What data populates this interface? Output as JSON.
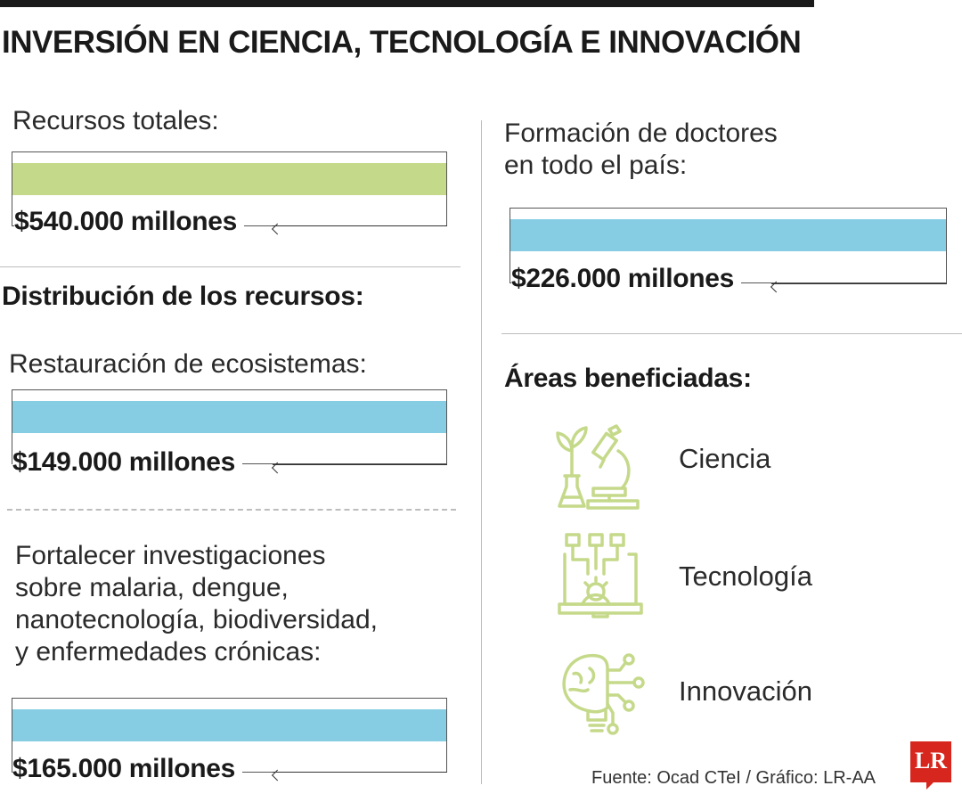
{
  "title": "INVERSIÓN EN CIENCIA, TECNOLOGÍA E INNOVACIÓN",
  "colors": {
    "green": "#c5d98a",
    "blue": "#86cde3",
    "icon_green": "#c5d98a",
    "logo_red": "#d7261e"
  },
  "chart_data": [
    {
      "type": "bar",
      "label": "Recursos totales:",
      "value_label": "$540.000 millones",
      "value": 540000,
      "unit": "millones",
      "color": "#c5d98a"
    },
    {
      "type": "bar",
      "label": "Restauración de ecosistemas:",
      "value_label": "$149.000 millones",
      "value": 149000,
      "unit": "millones",
      "color": "#86cde3"
    },
    {
      "type": "bar",
      "label": "Fortalecer investigaciones sobre malaria, dengue, nanotecnología, biodiversidad, y enfermedades crónicas:",
      "value_label": "$165.000 millones",
      "value": 165000,
      "unit": "millones",
      "color": "#86cde3"
    },
    {
      "type": "bar",
      "label": "Formación de doctores en todo el país:",
      "value_label": "$226.000 millones",
      "value": 226000,
      "unit": "millones",
      "color": "#86cde3"
    }
  ],
  "left": {
    "total_label": "Recursos totales:",
    "total_value": "$540.000 millones",
    "distribution_heading": "Distribución de los recursos:",
    "ecosystems_label": "Restauración de ecosistemas:",
    "ecosystems_value": "$149.000 millones",
    "research_label_lines": [
      "Fortalecer investigaciones",
      "sobre malaria, dengue,",
      "nanotecnología, biodiversidad,",
      "y enfermedades crónicas:"
    ],
    "research_value": "$165.000 millones"
  },
  "right": {
    "doctors_label_lines": [
      "Formación de doctores",
      "en todo el país:"
    ],
    "doctors_value": "$226.000 millones",
    "areas_heading": "Áreas beneficiadas:",
    "areas": [
      {
        "label": "Ciencia",
        "icon": "science-plant-microscope-icon"
      },
      {
        "label": "Tecnología",
        "icon": "laptop-gear-circuit-icon"
      },
      {
        "label": "Innovación",
        "icon": "brain-bulb-circuit-icon"
      }
    ]
  },
  "source": "Fuente: Ocad CTeI / Gráfico: LR-AA",
  "logo": "LR"
}
